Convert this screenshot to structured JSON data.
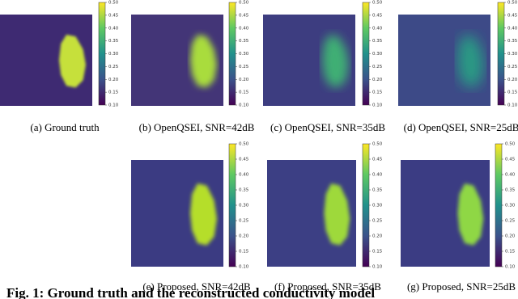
{
  "panels": [
    {
      "caption": "(a) Ground truth"
    },
    {
      "caption": "(b) OpenQSEI, SNR=42dB"
    },
    {
      "caption": "(c) OpenQSEI, SNR=35dB"
    },
    {
      "caption": "(d) OpenQSEI, SNR=25dB"
    },
    {
      "caption": "(e) Proposed, SNR=42dB"
    },
    {
      "caption": "(f) Proposed, SNR=35dB"
    },
    {
      "caption": "(g) Proposed, SNR=25dB"
    }
  ],
  "colorbar_ticks": [
    {
      "value": 0.5,
      "label": "0.50"
    },
    {
      "value": 0.45,
      "label": "0.45"
    },
    {
      "value": 0.4,
      "label": "0.40"
    },
    {
      "value": 0.35,
      "label": "0.35"
    },
    {
      "value": 0.3,
      "label": "0.30"
    },
    {
      "value": 0.25,
      "label": "0.25"
    },
    {
      "value": 0.2,
      "label": "0.20"
    },
    {
      "value": 0.15,
      "label": "0.15"
    },
    {
      "value": 0.1,
      "label": "0.10"
    }
  ],
  "figure_caption": "Fig. 1: Ground truth and the reconstructed conductivity model"
}
